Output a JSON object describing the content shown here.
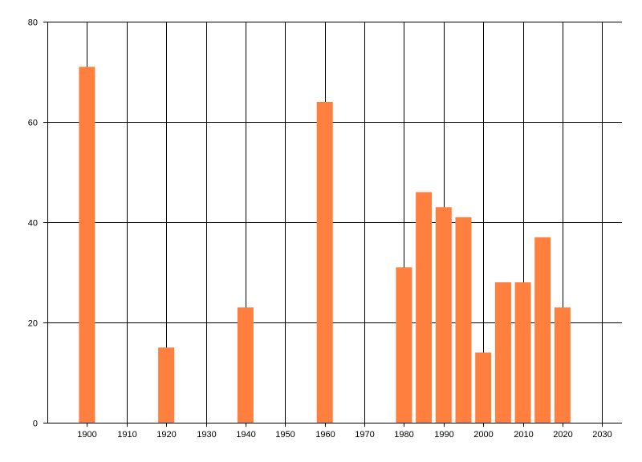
{
  "chart_data": {
    "type": "bar",
    "title": "",
    "xlabel": "",
    "ylabel": "",
    "x": [
      1900,
      1920,
      1940,
      1960,
      1980,
      1985,
      1990,
      1995,
      2000,
      2005,
      2010,
      2015,
      2020
    ],
    "values": [
      71,
      15,
      23,
      64,
      31,
      46,
      43,
      41,
      14,
      28,
      28,
      37,
      23
    ],
    "xlim": [
      1890,
      2035
    ],
    "ylim": [
      0,
      80
    ],
    "x_ticks": [
      1900,
      1910,
      1920,
      1930,
      1940,
      1950,
      1960,
      1970,
      1980,
      1990,
      2000,
      2010,
      2020,
      2030
    ],
    "y_ticks": [
      0,
      20,
      40,
      60,
      80
    ],
    "bar_color": "#ff7f3f",
    "grid": true,
    "legend": "none"
  }
}
